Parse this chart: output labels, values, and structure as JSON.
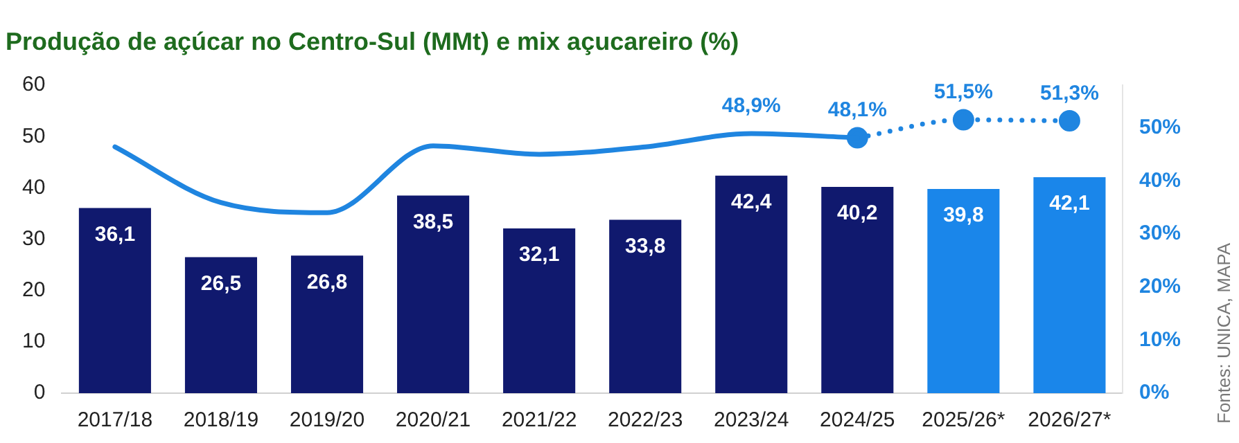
{
  "chart_data": {
    "type": "bar",
    "title": "Produção de açúcar no Centro-Sul (MMt) e mix açucareiro (%)",
    "categories": [
      "2017/18",
      "2018/19",
      "2019/20",
      "2020/21",
      "2021/22",
      "2022/23",
      "2023/24",
      "2024/25",
      "2025/26*",
      "2026/27*"
    ],
    "series": [
      {
        "colors": [
          "#10196e",
          "#10196e",
          "#10196e",
          "#10196e",
          "#10196e",
          "#10196e",
          "#10196e",
          "#10196e",
          "#1a86ea",
          "#1a86ea"
        ],
        "values": [
          36.1,
          26.5,
          26.8,
          38.5,
          32.1,
          33.8,
          42.4,
          40.2,
          39.8,
          42.1
        ],
        "value_labels": [
          "36,1",
          "26,5",
          "26,8",
          "38,5",
          "32,1",
          "33,8",
          "42,4",
          "40,2",
          "39,8",
          "42,1"
        ]
      },
      {
        "type": "line",
        "axis": "y2",
        "color": "#1f85e0",
        "line_style": "solid",
        "marker": "none",
        "values": [
          46.4,
          35.9,
          34.0,
          46.6,
          45.0,
          46.4,
          48.9,
          48.1,
          null,
          null
        ],
        "value_labels": [
          null,
          null,
          null,
          null,
          null,
          null,
          "48,9%",
          "48,1%",
          null,
          null
        ]
      },
      {
        "type": "line",
        "axis": "y2",
        "color": "#1f85e0",
        "line_style": "dotted",
        "marker": "circle",
        "values": [
          null,
          null,
          null,
          null,
          null,
          null,
          null,
          48.1,
          51.5,
          51.3
        ],
        "value_labels": [
          null,
          null,
          null,
          null,
          null,
          null,
          null,
          null,
          "51,5%",
          "51,3%"
        ]
      }
    ],
    "ylim": [
      0,
      60
    ],
    "yticks": [
      0,
      10,
      20,
      30,
      40,
      50,
      60
    ],
    "y2lim": [
      0,
      58
    ],
    "y2ticks": [
      {
        "value": 0,
        "label": "0%"
      },
      {
        "value": 10,
        "label": "10%"
      },
      {
        "value": 20,
        "label": "20%"
      },
      {
        "value": 30,
        "label": "30%"
      },
      {
        "value": 40,
        "label": "40%"
      },
      {
        "value": 50,
        "label": "50%"
      }
    ],
    "grid": false,
    "legend": false,
    "annotations": [
      "Fontes: UNICA, MAPA"
    ]
  }
}
